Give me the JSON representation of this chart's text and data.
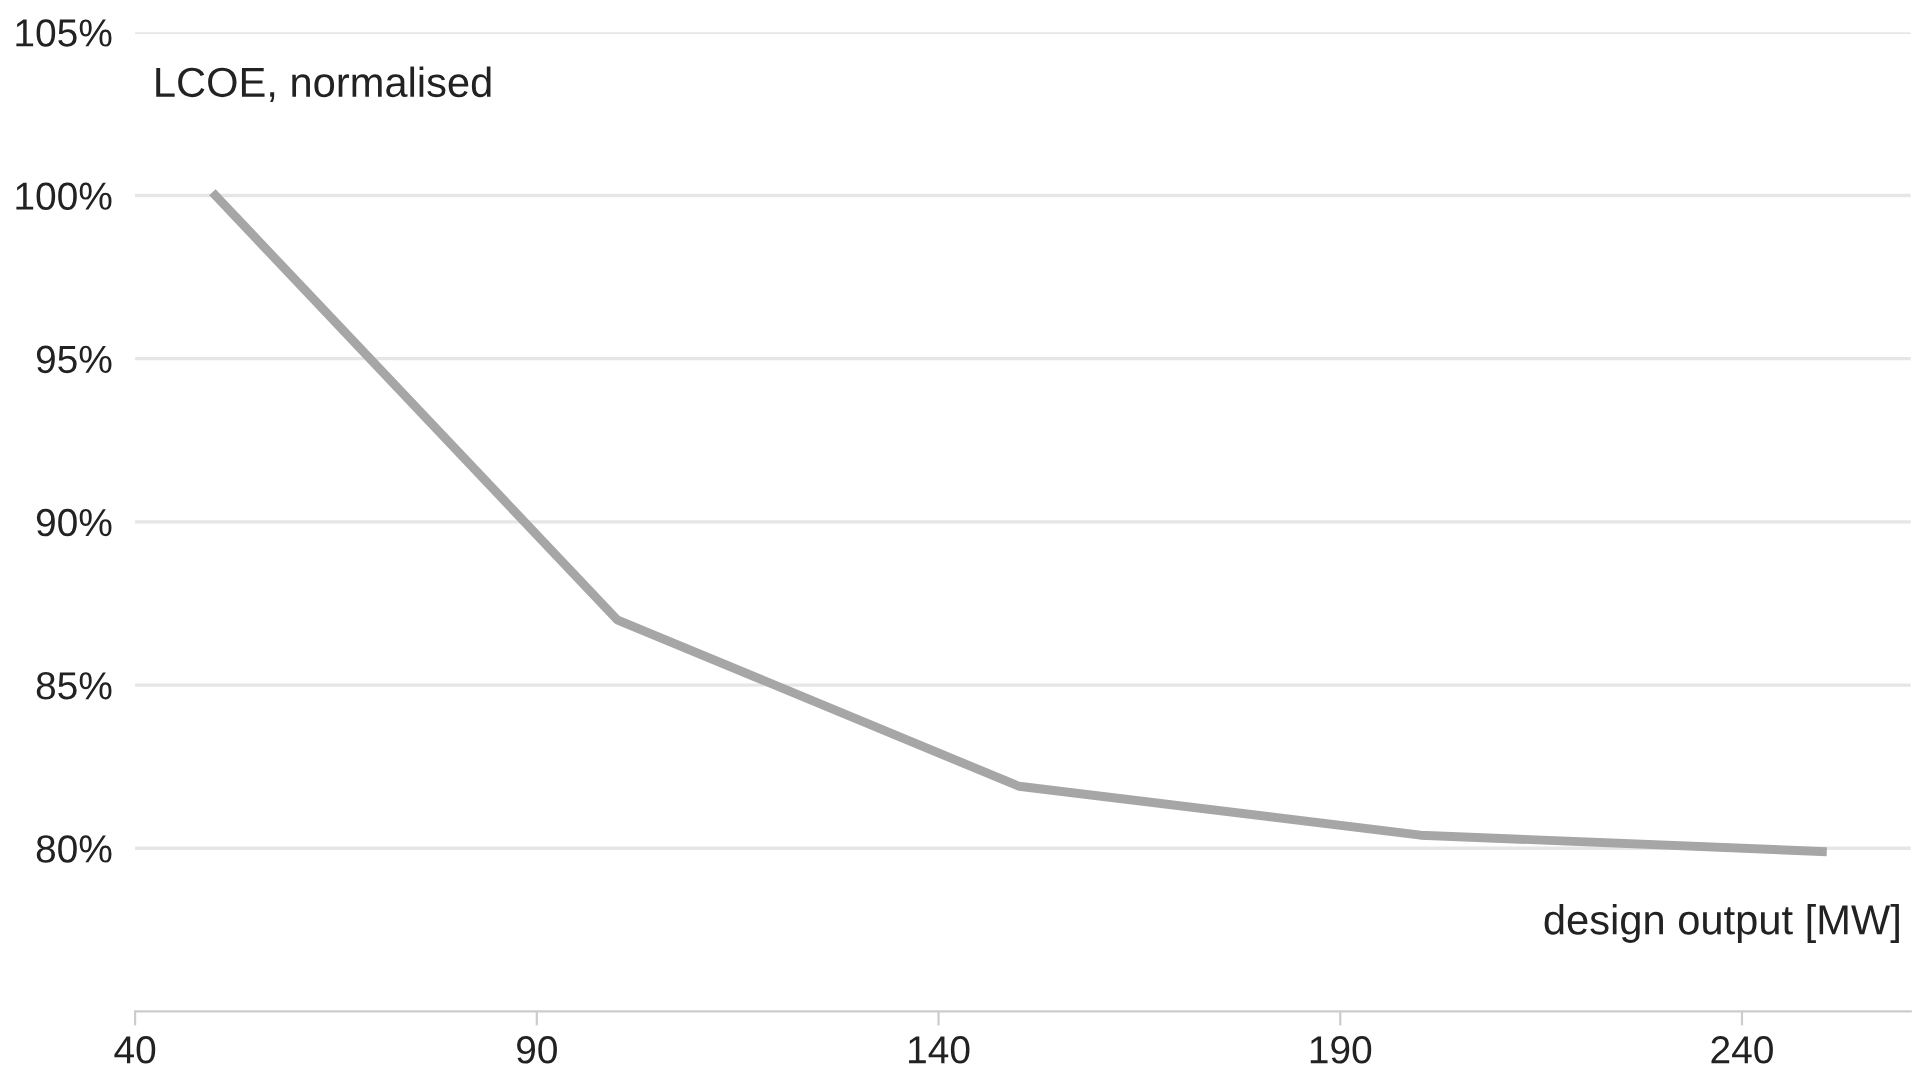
{
  "chart_data": {
    "type": "line",
    "ylabel": "LCOE, normalised",
    "xlabel": "design output [MW]",
    "x": [
      50,
      100,
      150,
      200,
      250
    ],
    "series": [
      {
        "color": "#a6a6a6",
        "values": [
          100,
          87.0,
          81.9,
          80.4,
          79.9
        ]
      }
    ],
    "xlim": [
      40,
      261
    ],
    "xticks": [
      40,
      90,
      140,
      190,
      240
    ],
    "ylim": [
      75,
      105
    ],
    "yticks": [
      {
        "value": 80,
        "label": "80%"
      },
      {
        "value": 85,
        "label": "85%"
      },
      {
        "value": 90,
        "label": "90%"
      },
      {
        "value": 95,
        "label": "95%"
      },
      {
        "value": 100,
        "label": "100%"
      },
      {
        "value": 105,
        "label": "105%"
      }
    ],
    "grid": "y",
    "marker": "none",
    "line_style": "solid"
  }
}
